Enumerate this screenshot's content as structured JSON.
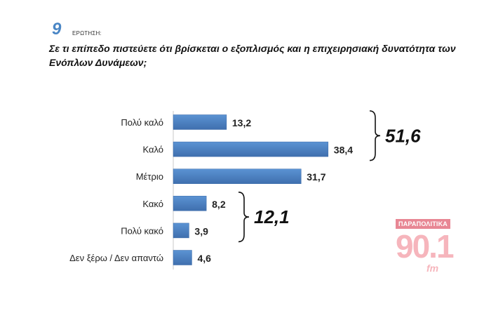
{
  "question": {
    "number": "9",
    "label": "ΕΡΩΤΗΣΗ:",
    "text": "Σε τι επίπεδο πιστεύετε ότι βρίσκεται ο εξοπλισμός και η επιχειρησιακή δυνατότητα των Ενόπλων Δυνάμεων;"
  },
  "chart_data": {
    "type": "bar",
    "orientation": "horizontal",
    "categories": [
      "Πολύ καλό",
      "Καλό",
      "Μέτριο",
      "Κακό",
      "Πολύ κακό",
      "Δεν ξέρω / Δεν απαντώ"
    ],
    "values": [
      13.2,
      38.4,
      31.7,
      8.2,
      3.9,
      4.6
    ],
    "value_labels": [
      "13,2",
      "38,4",
      "31,7",
      "8,2",
      "3,9",
      "4,6"
    ],
    "xlim": [
      0,
      40
    ],
    "grid": false,
    "bar_color": "#4a7fc1",
    "group_totals": [
      {
        "label": "51,6",
        "from": 0,
        "to": 1
      },
      {
        "label": "12,1",
        "from": 3,
        "to": 4
      }
    ]
  },
  "logo": {
    "top_text": "ΠΑΡΑΠΟΛΙΤΙΚΑ",
    "number": "90.1",
    "suffix": "fm"
  }
}
